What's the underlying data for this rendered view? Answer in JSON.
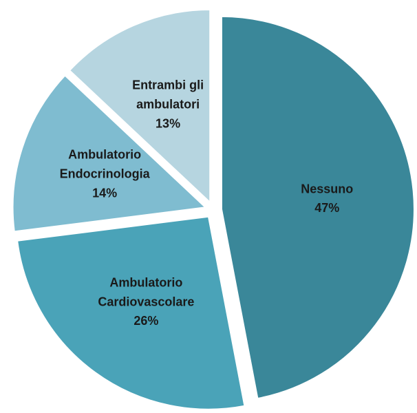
{
  "chart_data": {
    "type": "pie",
    "categories": [
      "Nessuno",
      "Ambulatorio\nCardiovascolare",
      "Ambulatorio\nEndocrinologia",
      "Entrambi gli\nambulatori"
    ],
    "values": [
      47,
      26,
      14,
      13
    ],
    "value_labels": [
      "47%",
      "26%",
      "14%",
      "13%"
    ],
    "colors": [
      "#3a8799",
      "#4aa3b8",
      "#7fbcd0",
      "#b6d5e0"
    ]
  }
}
